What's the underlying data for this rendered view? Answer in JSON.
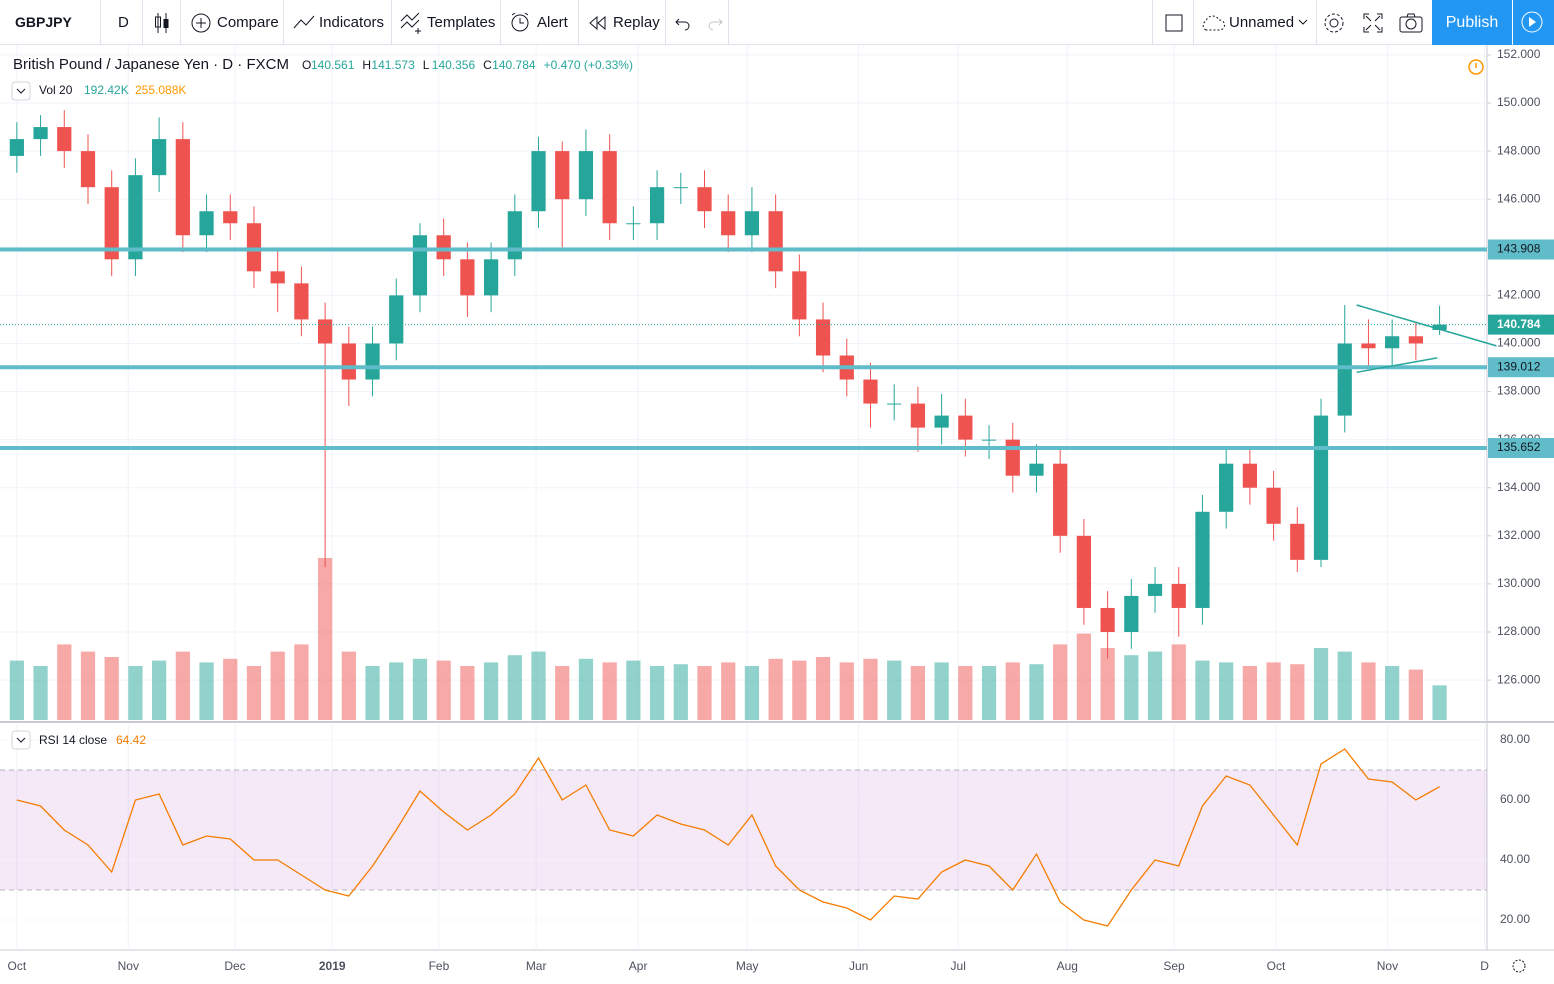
{
  "toolbar": {
    "symbol": "GBPJPY",
    "interval": "D",
    "buttons": [
      "Compare",
      "Indicators",
      "Templates",
      "Alert",
      "Replay"
    ],
    "layout": "Unnamed",
    "publish": "Publish"
  },
  "chart_data": {
    "type": "candlestick",
    "title": "British Pound / Japanese Yen · D · FXCM",
    "ohlc_labels": [
      "O",
      "H",
      "L",
      "C"
    ],
    "change": "+0.470 (+0.33%)",
    "open": [
      147.8,
      148.5,
      149,
      148,
      146.5,
      143.5,
      147,
      148.5,
      144.5,
      145.5,
      145,
      143,
      142.5,
      141,
      140,
      138.5,
      140,
      142,
      144.5,
      143.5,
      142,
      143.5,
      145.5,
      148,
      146,
      148,
      145,
      145,
      146.5,
      146.5,
      145.5,
      144.5,
      145.5,
      143,
      141,
      139.5,
      138.5,
      137.5,
      137.5,
      136.5,
      137,
      136,
      136,
      134.5,
      135,
      132,
      129,
      128,
      129.5,
      130,
      129,
      133,
      135,
      134,
      132.5,
      131,
      137,
      140,
      139.8,
      140.3,
      140.561
    ],
    "high": [
      149.2,
      149.5,
      149.7,
      148.7,
      147.2,
      147.7,
      149.4,
      149.2,
      146.2,
      146.2,
      145.7,
      144,
      143.2,
      141.7,
      140.7,
      140.7,
      142.7,
      145,
      145.2,
      144.2,
      144.2,
      146.2,
      148.6,
      148.4,
      148.9,
      148.7,
      145.7,
      147.2,
      147.1,
      147.2,
      146.2,
      146.5,
      146.2,
      143.7,
      141.7,
      140.2,
      139.2,
      138.3,
      138.2,
      137.9,
      137.7,
      136.6,
      136.7,
      135.8,
      135.7,
      132.7,
      129.7,
      130.2,
      130.7,
      130.7,
      133.7,
      135.7,
      135.7,
      134.7,
      133.2,
      137.7,
      141.6,
      141,
      141,
      140.9,
      141.573
    ],
    "low": [
      147.1,
      147.8,
      147.3,
      145.8,
      142.8,
      142.8,
      146.3,
      143.8,
      143.8,
      144.3,
      142.3,
      141.3,
      140.3,
      130.7,
      137.4,
      137.8,
      139.3,
      141.3,
      142.8,
      141.1,
      141.3,
      142.8,
      144.8,
      144,
      145.3,
      144.3,
      144.3,
      144.3,
      145.8,
      144.8,
      143.8,
      143.8,
      142.3,
      140.3,
      138.8,
      137.8,
      136.5,
      136.8,
      135.5,
      135.8,
      135.3,
      135.2,
      133.8,
      133.8,
      131.3,
      128.3,
      126.9,
      127.3,
      128.8,
      127.8,
      128.3,
      132.3,
      133.3,
      131.8,
      130.5,
      130.7,
      136.3,
      139,
      139.1,
      139.3,
      140.356
    ],
    "close": [
      148.5,
      149,
      148,
      146.5,
      143.5,
      147,
      148.5,
      144.5,
      145.5,
      145,
      143,
      142.5,
      141,
      140,
      138.5,
      140,
      142,
      144.5,
      143.5,
      142,
      143.5,
      145.5,
      148,
      146,
      148,
      145,
      145,
      146.5,
      146.5,
      145.5,
      144.5,
      145.5,
      143,
      141,
      139.5,
      138.5,
      137.5,
      137.5,
      136.5,
      137,
      136,
      136,
      134.5,
      135,
      132,
      129,
      128,
      129.5,
      130,
      129,
      133,
      135,
      134,
      132.5,
      131,
      137,
      140,
      139.8,
      140.3,
      140,
      140.784
    ],
    "up_color": "#26a69a",
    "down_color": "#ef5350",
    "xlim": [
      -0.5,
      62
    ],
    "xticks": [
      {
        "value": 0,
        "label": "Oct"
      },
      {
        "value": 4.7,
        "label": "Nov"
      },
      {
        "value": 9.2,
        "label": "Dec"
      },
      {
        "value": 13.3,
        "label": "2019"
      },
      {
        "value": 17.8,
        "label": "Feb"
      },
      {
        "value": 21.9,
        "label": "Mar"
      },
      {
        "value": 26.2,
        "label": "Apr"
      },
      {
        "value": 30.8,
        "label": "May"
      },
      {
        "value": 35.5,
        "label": "Jun"
      },
      {
        "value": 39.7,
        "label": "Jul"
      },
      {
        "value": 44.3,
        "label": "Aug"
      },
      {
        "value": 48.8,
        "label": "Sep"
      },
      {
        "value": 53.1,
        "label": "Oct"
      },
      {
        "value": 57.8,
        "label": "Nov"
      },
      {
        "value": 61.9,
        "label": "D"
      }
    ],
    "ylim": [
      124.34,
      152.33
    ],
    "yticks": [
      {
        "value": 126,
        "label": "126.000"
      },
      {
        "value": 128,
        "label": "128.000"
      },
      {
        "value": 130,
        "label": "130.000"
      },
      {
        "value": 132,
        "label": "132.000"
      },
      {
        "value": 134,
        "label": "134.000"
      },
      {
        "value": 136,
        "label": "136.000"
      },
      {
        "value": 138,
        "label": "138.000"
      },
      {
        "value": 140,
        "label": "140.000"
      },
      {
        "value": 142,
        "label": "142.000"
      },
      {
        "value": 144,
        "label": "144.000"
      },
      {
        "value": 146,
        "label": "146.000"
      },
      {
        "value": 148,
        "label": "148.000"
      },
      {
        "value": 150,
        "label": "150.000"
      },
      {
        "value": 152,
        "label": "152.000"
      }
    ],
    "grid": true,
    "levels": [
      143.908,
      139.012,
      135.652
    ],
    "level_color": "#5fbcc8",
    "trendlines": [
      {
        "x": [
          56.5,
          62.4
        ],
        "y": [
          141.6,
          139.9
        ]
      },
      {
        "x": [
          56.5,
          59.9
        ],
        "y": [
          138.8,
          139.4
        ]
      }
    ],
    "volume": {
      "name": "Vol 20",
      "value_label": "192.42K",
      "ma_label": "255.088K",
      "ylim": [
        0,
        1000
      ],
      "values": [
        330,
        300,
        420,
        380,
        350,
        300,
        330,
        380,
        320,
        340,
        300,
        380,
        420,
        900,
        380,
        300,
        320,
        340,
        330,
        300,
        320,
        360,
        380,
        300,
        340,
        320,
        330,
        300,
        310,
        300,
        320,
        300,
        340,
        330,
        350,
        320,
        340,
        330,
        300,
        320,
        300,
        300,
        320,
        310,
        420,
        480,
        400,
        360,
        380,
        420,
        330,
        320,
        300,
        320,
        310,
        400,
        380,
        320,
        300,
        280,
        192.42
      ]
    },
    "rsi": {
      "name": "RSI 14 close",
      "color": "#f57c00",
      "ylim": [
        10,
        84
      ],
      "band": [
        30,
        70
      ],
      "yticks": [
        {
          "value": 20,
          "label": "20.00"
        },
        {
          "value": 40,
          "label": "40.00"
        },
        {
          "value": 60,
          "label": "60.00"
        },
        {
          "value": 80,
          "label": "80.00"
        }
      ],
      "values": [
        60,
        58,
        50,
        45,
        36,
        60,
        62,
        45,
        48,
        47,
        40,
        40,
        35,
        30,
        28,
        38,
        50,
        63,
        56,
        50,
        55,
        62,
        74,
        60,
        65,
        50,
        48,
        55,
        52,
        50,
        45,
        55,
        38,
        30,
        26,
        24,
        20,
        28,
        27,
        36,
        40,
        38,
        30,
        42,
        26,
        20,
        18,
        30,
        40,
        38,
        58,
        68,
        65,
        55,
        45,
        72,
        77,
        67,
        66,
        60,
        64.42
      ]
    }
  }
}
